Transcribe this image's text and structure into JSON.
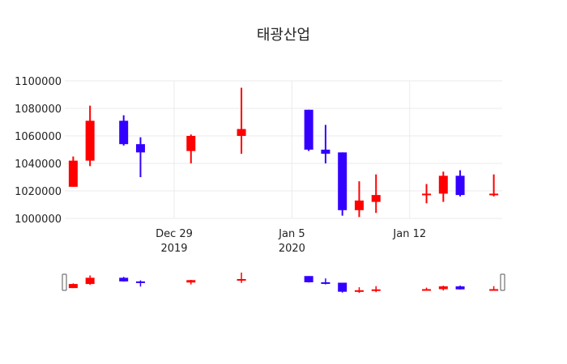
{
  "chart_data": {
    "type": "candlestick",
    "title": "태광산업",
    "xlabel": "",
    "ylabel": "",
    "ylim": [
      1000000,
      1100000
    ],
    "yticks": [
      1000000,
      1020000,
      1040000,
      1060000,
      1080000,
      1100000
    ],
    "ytick_labels": [
      "1000000",
      "1020000",
      "1040000",
      "1060000",
      "1080000",
      "1100000"
    ],
    "xticks": [
      {
        "date": "2019-12-29",
        "label": "Dec 29",
        "sublabel": "2019"
      },
      {
        "date": "2020-01-05",
        "label": "Jan 5",
        "sublabel": "2020"
      },
      {
        "date": "2020-01-12",
        "label": "Jan 12",
        "sublabel": ""
      }
    ],
    "colors": {
      "increasing": "#ff0000",
      "decreasing": "#3300ff"
    },
    "rangeslider": true,
    "grid": true,
    "candles": [
      {
        "date": "2019-12-23",
        "open": 1023000,
        "high": 1045000,
        "low": 1023000,
        "close": 1042000
      },
      {
        "date": "2019-12-24",
        "open": 1042000,
        "high": 1082000,
        "low": 1038000,
        "close": 1071000
      },
      {
        "date": "2019-12-26",
        "open": 1071000,
        "high": 1075000,
        "low": 1053000,
        "close": 1054000
      },
      {
        "date": "2019-12-27",
        "open": 1054000,
        "high": 1059000,
        "low": 1030000,
        "close": 1048000
      },
      {
        "date": "2019-12-30",
        "open": 1049000,
        "high": 1061000,
        "low": 1040000,
        "close": 1060000
      },
      {
        "date": "2020-01-02",
        "open": 1060000,
        "high": 1095000,
        "low": 1047000,
        "close": 1065000
      },
      {
        "date": "2020-01-06",
        "open": 1079000,
        "high": 1079000,
        "low": 1049000,
        "close": 1050000
      },
      {
        "date": "2020-01-07",
        "open": 1050000,
        "high": 1068000,
        "low": 1040000,
        "close": 1047000
      },
      {
        "date": "2020-01-08",
        "open": 1048000,
        "high": 1048000,
        "low": 1002000,
        "close": 1006000
      },
      {
        "date": "2020-01-09",
        "open": 1006000,
        "high": 1027000,
        "low": 1001000,
        "close": 1013000
      },
      {
        "date": "2020-01-10",
        "open": 1012000,
        "high": 1032000,
        "low": 1004000,
        "close": 1017000
      },
      {
        "date": "2020-01-13",
        "open": 1017000,
        "high": 1025000,
        "low": 1011000,
        "close": 1018000
      },
      {
        "date": "2020-01-14",
        "open": 1018000,
        "high": 1034000,
        "low": 1012000,
        "close": 1031000
      },
      {
        "date": "2020-01-15",
        "open": 1031000,
        "high": 1035000,
        "low": 1016000,
        "close": 1017000
      },
      {
        "date": "2020-01-17",
        "open": 1017000,
        "high": 1032000,
        "low": 1016000,
        "close": 1018000
      }
    ]
  }
}
